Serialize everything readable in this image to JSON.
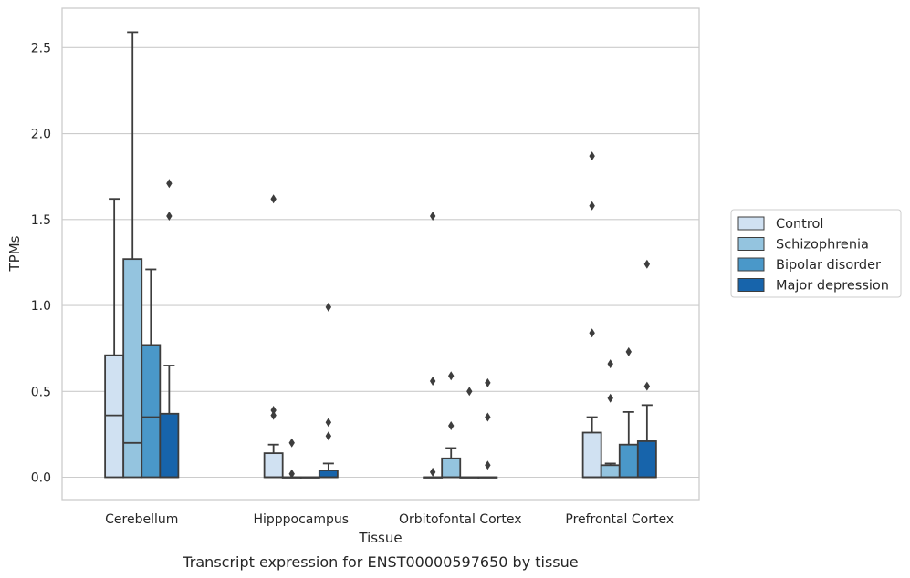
{
  "caption": "Transcript expression for ENST00000597650 by tissue",
  "chart_data": {
    "type": "box",
    "xlabel": "Tissue",
    "ylabel": "TPMs",
    "ylim": [
      -0.13,
      2.73
    ],
    "yticks": [
      "0.0",
      "0.5",
      "1.0",
      "1.5",
      "2.0",
      "2.5"
    ],
    "ytick_values": [
      0,
      0.5,
      1.0,
      1.5,
      2.0,
      2.5
    ],
    "grid": "horizontal",
    "legend_position": "right",
    "categories": [
      "Cerebellum",
      "Hipppocampus",
      "Orbitofontal Cortex",
      "Prefrontal Cortex"
    ],
    "series": [
      {
        "name": "Control",
        "color": "#d0e1f2",
        "boxes": [
          {
            "q1": 0,
            "median": 0.36,
            "q3": 0.71,
            "whisker_low": 0,
            "whisker_high": 1.62,
            "outliers": []
          },
          {
            "q1": 0,
            "median": 0,
            "q3": 0.14,
            "whisker_low": 0,
            "whisker_high": 0.19,
            "outliers": [
              1.62,
              0.39,
              0.36
            ]
          },
          {
            "q1": 0,
            "median": 0,
            "q3": 0,
            "whisker_low": 0,
            "whisker_high": 0,
            "outliers": [
              1.52,
              0.56,
              0.03
            ]
          },
          {
            "q1": 0,
            "median": 0,
            "q3": 0.26,
            "whisker_low": 0,
            "whisker_high": 0.35,
            "outliers": [
              1.87,
              1.58,
              0.84
            ]
          }
        ]
      },
      {
        "name": "Schizophrenia",
        "color": "#94c4df",
        "boxes": [
          {
            "q1": 0,
            "median": 0.2,
            "q3": 1.27,
            "whisker_low": 0,
            "whisker_high": 2.59,
            "outliers": []
          },
          {
            "q1": 0,
            "median": 0,
            "q3": 0,
            "whisker_low": 0,
            "whisker_high": 0,
            "outliers": [
              0.2,
              0.02
            ]
          },
          {
            "q1": 0,
            "median": 0,
            "q3": 0.11,
            "whisker_low": 0,
            "whisker_high": 0.17,
            "outliers": [
              0.59,
              0.3
            ]
          },
          {
            "q1": 0,
            "median": 0,
            "q3": 0.07,
            "whisker_low": 0,
            "whisker_high": 0.08,
            "outliers": [
              0.66,
              0.46
            ]
          }
        ]
      },
      {
        "name": "Bipolar disorder",
        "color": "#4a98c9",
        "boxes": [
          {
            "q1": 0,
            "median": 0.35,
            "q3": 0.77,
            "whisker_low": 0,
            "whisker_high": 1.21,
            "outliers": []
          },
          {
            "q1": 0,
            "median": 0,
            "q3": 0,
            "whisker_low": 0,
            "whisker_high": 0,
            "outliers": []
          },
          {
            "q1": 0,
            "median": 0,
            "q3": 0,
            "whisker_low": 0,
            "whisker_high": 0,
            "outliers": [
              0.5
            ]
          },
          {
            "q1": 0,
            "median": 0,
            "q3": 0.19,
            "whisker_low": 0,
            "whisker_high": 0.38,
            "outliers": [
              0.73
            ]
          }
        ]
      },
      {
        "name": "Major depression",
        "color": "#1764ab",
        "boxes": [
          {
            "q1": 0,
            "median": 0,
            "q3": 0.37,
            "whisker_low": 0,
            "whisker_high": 0.65,
            "outliers": [
              1.71,
              1.52
            ]
          },
          {
            "q1": 0,
            "median": 0,
            "q3": 0.04,
            "whisker_low": 0,
            "whisker_high": 0.08,
            "outliers": [
              0.99,
              0.32,
              0.24
            ]
          },
          {
            "q1": 0,
            "median": 0,
            "q3": 0,
            "whisker_low": 0,
            "whisker_high": 0,
            "outliers": [
              0.55,
              0.35,
              0.07
            ]
          },
          {
            "q1": 0,
            "median": 0,
            "q3": 0.21,
            "whisker_low": 0,
            "whisker_high": 0.42,
            "outliers": [
              1.24,
              0.53
            ]
          }
        ]
      }
    ]
  }
}
